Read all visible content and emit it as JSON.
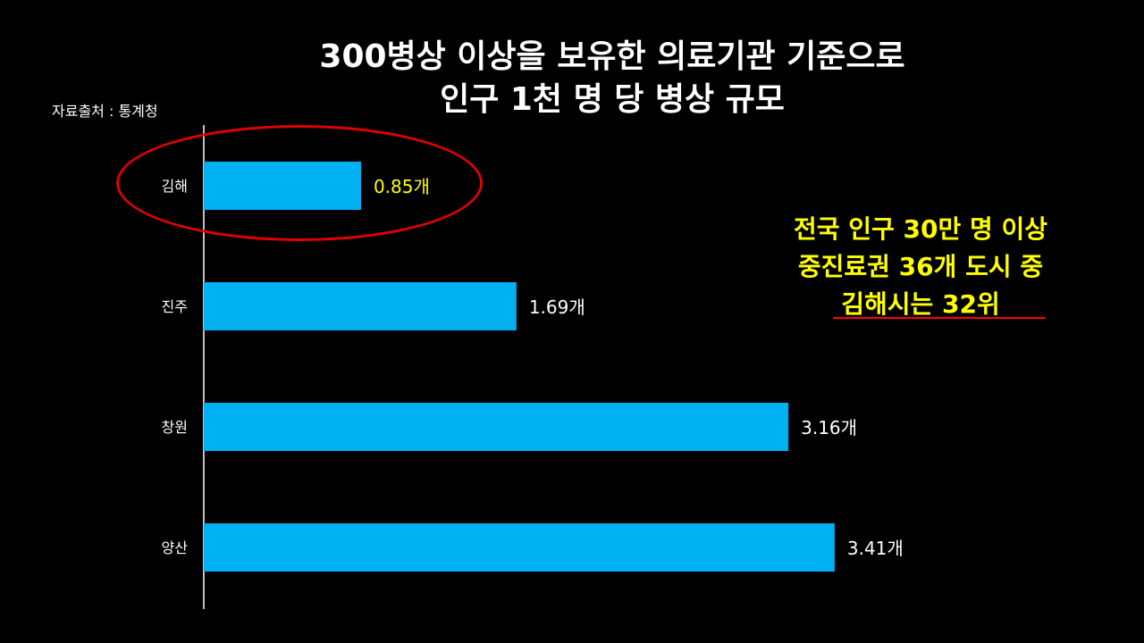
{
  "title": {
    "line1": "300병상 이상을 보유한 의료기관 기준으로",
    "line2": "인구 1천 명 당 병상 규모"
  },
  "source": "자료출처 : 통계청",
  "note": {
    "line1": "전국 인구 30만 명 이상",
    "line2": "중진료권 36개 도시 중",
    "line3": "김해시는 32위"
  },
  "colors": {
    "background": "#000000",
    "bar": "#00b0f0",
    "highlight_label": "#ffff00",
    "label": "#ffffff",
    "ellipse": "#e00000",
    "note": "#ffff00"
  },
  "chart_data": {
    "type": "bar",
    "orientation": "horizontal",
    "categories": [
      "김해",
      "진주",
      "창원",
      "양산"
    ],
    "values": [
      0.85,
      1.69,
      3.16,
      3.41
    ],
    "value_labels": [
      "0.85개",
      "1.69개",
      "3.16개",
      "3.41개"
    ],
    "highlighted_category": "김해",
    "xlim": [
      0,
      3.6
    ]
  }
}
